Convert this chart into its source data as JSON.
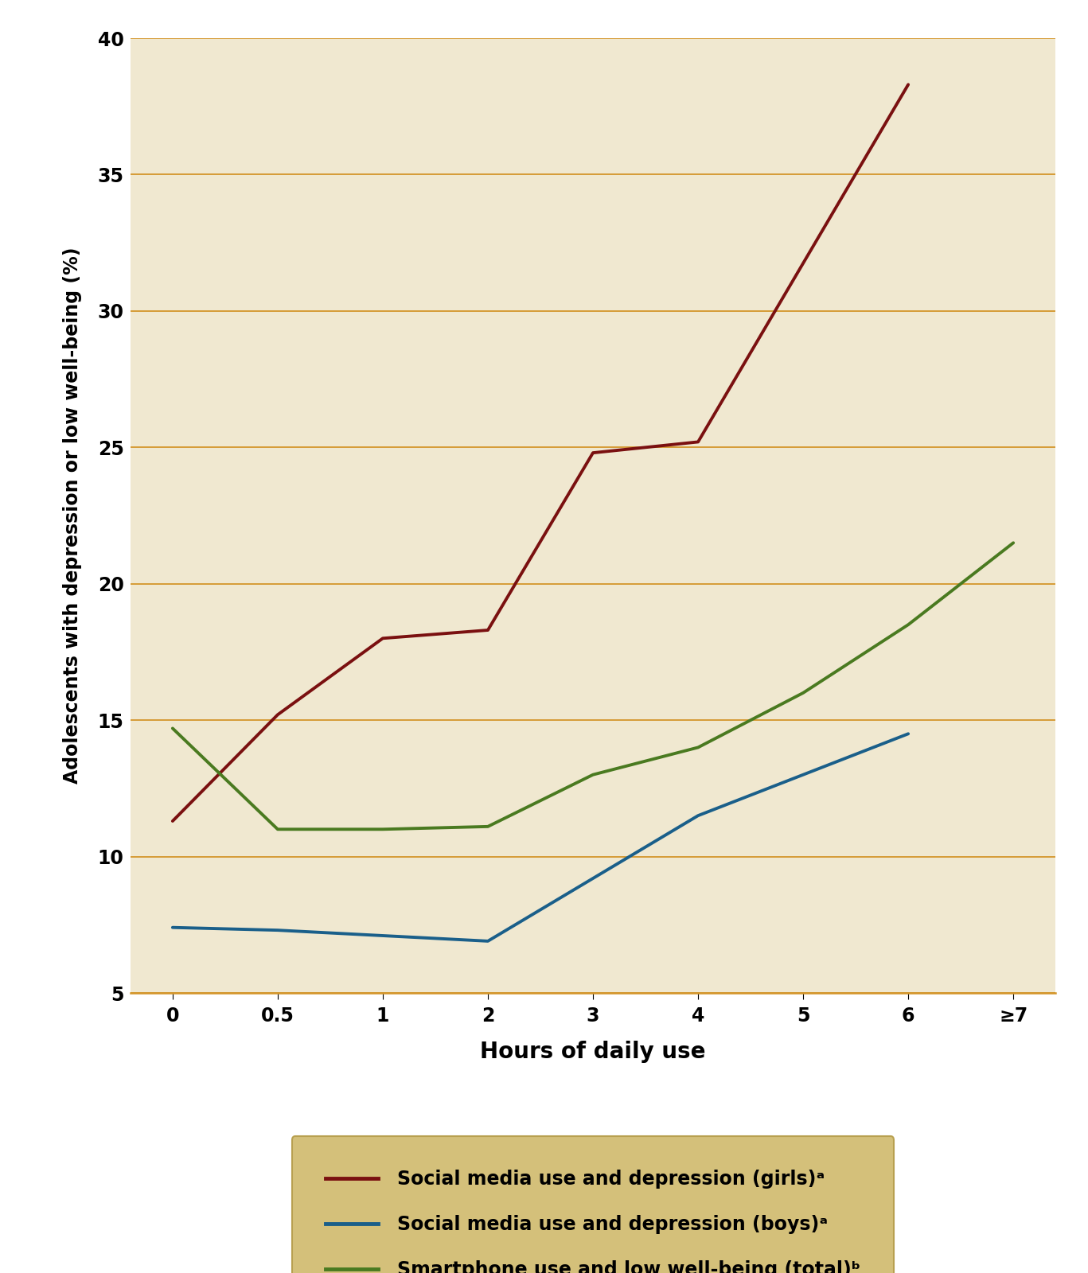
{
  "background_color": "#ffffff",
  "plot_bg_color": "#f0e8d0",
  "legend_bg_color": "#d4c07a",
  "grid_color": "#d4962a",
  "x_labels": [
    "0",
    "0.5",
    "1",
    "2",
    "3",
    "4",
    "5",
    "6",
    "≥7"
  ],
  "girls_y": [
    11.3,
    15.2,
    18.0,
    18.3,
    24.8,
    25.2,
    null,
    38.3,
    null
  ],
  "boys_y": [
    7.4,
    7.3,
    null,
    6.9,
    null,
    11.5,
    13.0,
    14.5,
    null
  ],
  "total_y": [
    14.7,
    11.0,
    11.0,
    11.1,
    13.0,
    14.0,
    16.0,
    18.5,
    21.5
  ],
  "girls_color": "#7a1010",
  "boys_color": "#1a5f8a",
  "total_color": "#4a7a20",
  "ylim": [
    5,
    40
  ],
  "yticks": [
    5,
    10,
    15,
    20,
    25,
    30,
    35,
    40
  ],
  "xlabel": "Hours of daily use",
  "ylabel": "Adolescents with depression or low well-being (%)",
  "legend_labels": [
    "Social media use and depression (girls)ᵃ",
    "Social media use and depression (boys)ᵃ",
    "Smartphone use and low well-being (total)ᵇ"
  ],
  "line_width": 2.8,
  "xlabel_fontsize": 20,
  "ylabel_fontsize": 17,
  "tick_fontsize": 17,
  "legend_fontsize": 17
}
